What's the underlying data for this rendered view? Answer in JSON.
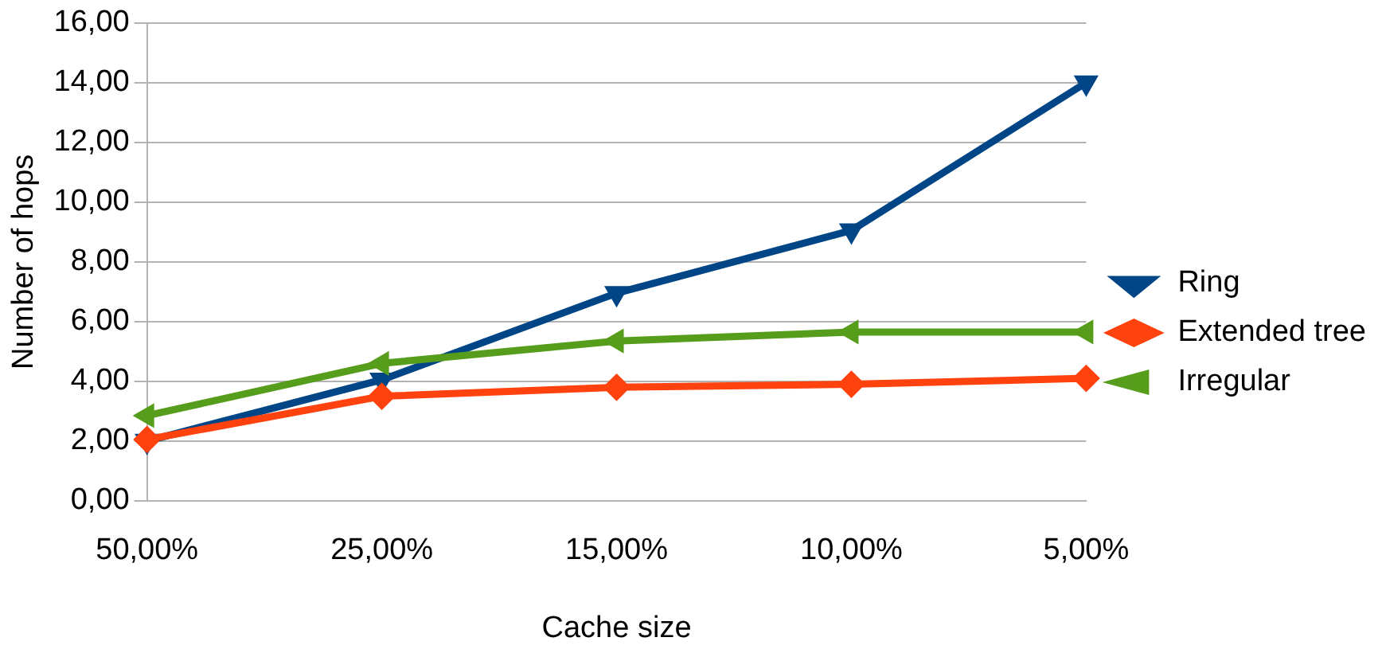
{
  "chart_data": {
    "type": "line",
    "xlabel": "Cache size",
    "ylabel": "Number of hops",
    "categories": [
      "50,00%",
      "25,00%",
      "15,00%",
      "10,00%",
      "5,00%"
    ],
    "series": [
      {
        "name": "Ring",
        "color": "#004586",
        "marker": "triangle",
        "values": [
          2.0,
          4.05,
          6.95,
          9.05,
          14.0
        ]
      },
      {
        "name": "Extended tree",
        "color": "#ff420e",
        "marker": "diamond",
        "values": [
          2.05,
          3.5,
          3.8,
          3.9,
          4.1
        ]
      },
      {
        "name": "Irregular",
        "color": "#579d1c",
        "marker": "triangle",
        "values": [
          2.85,
          4.6,
          5.35,
          5.65,
          5.65
        ]
      }
    ],
    "ylim": [
      0,
      16
    ],
    "yticks": [
      {
        "value": 0,
        "label": "0,00"
      },
      {
        "value": 2,
        "label": "2,00"
      },
      {
        "value": 4,
        "label": "4,00"
      },
      {
        "value": 6,
        "label": "6,00"
      },
      {
        "value": 8,
        "label": "8,00"
      },
      {
        "value": 10,
        "label": "10,00"
      },
      {
        "value": 12,
        "label": "12,00"
      },
      {
        "value": 14,
        "label": "14,00"
      },
      {
        "value": 16,
        "label": "16,00"
      }
    ],
    "grid": "y",
    "legend": "right",
    "line_style": "solid"
  }
}
